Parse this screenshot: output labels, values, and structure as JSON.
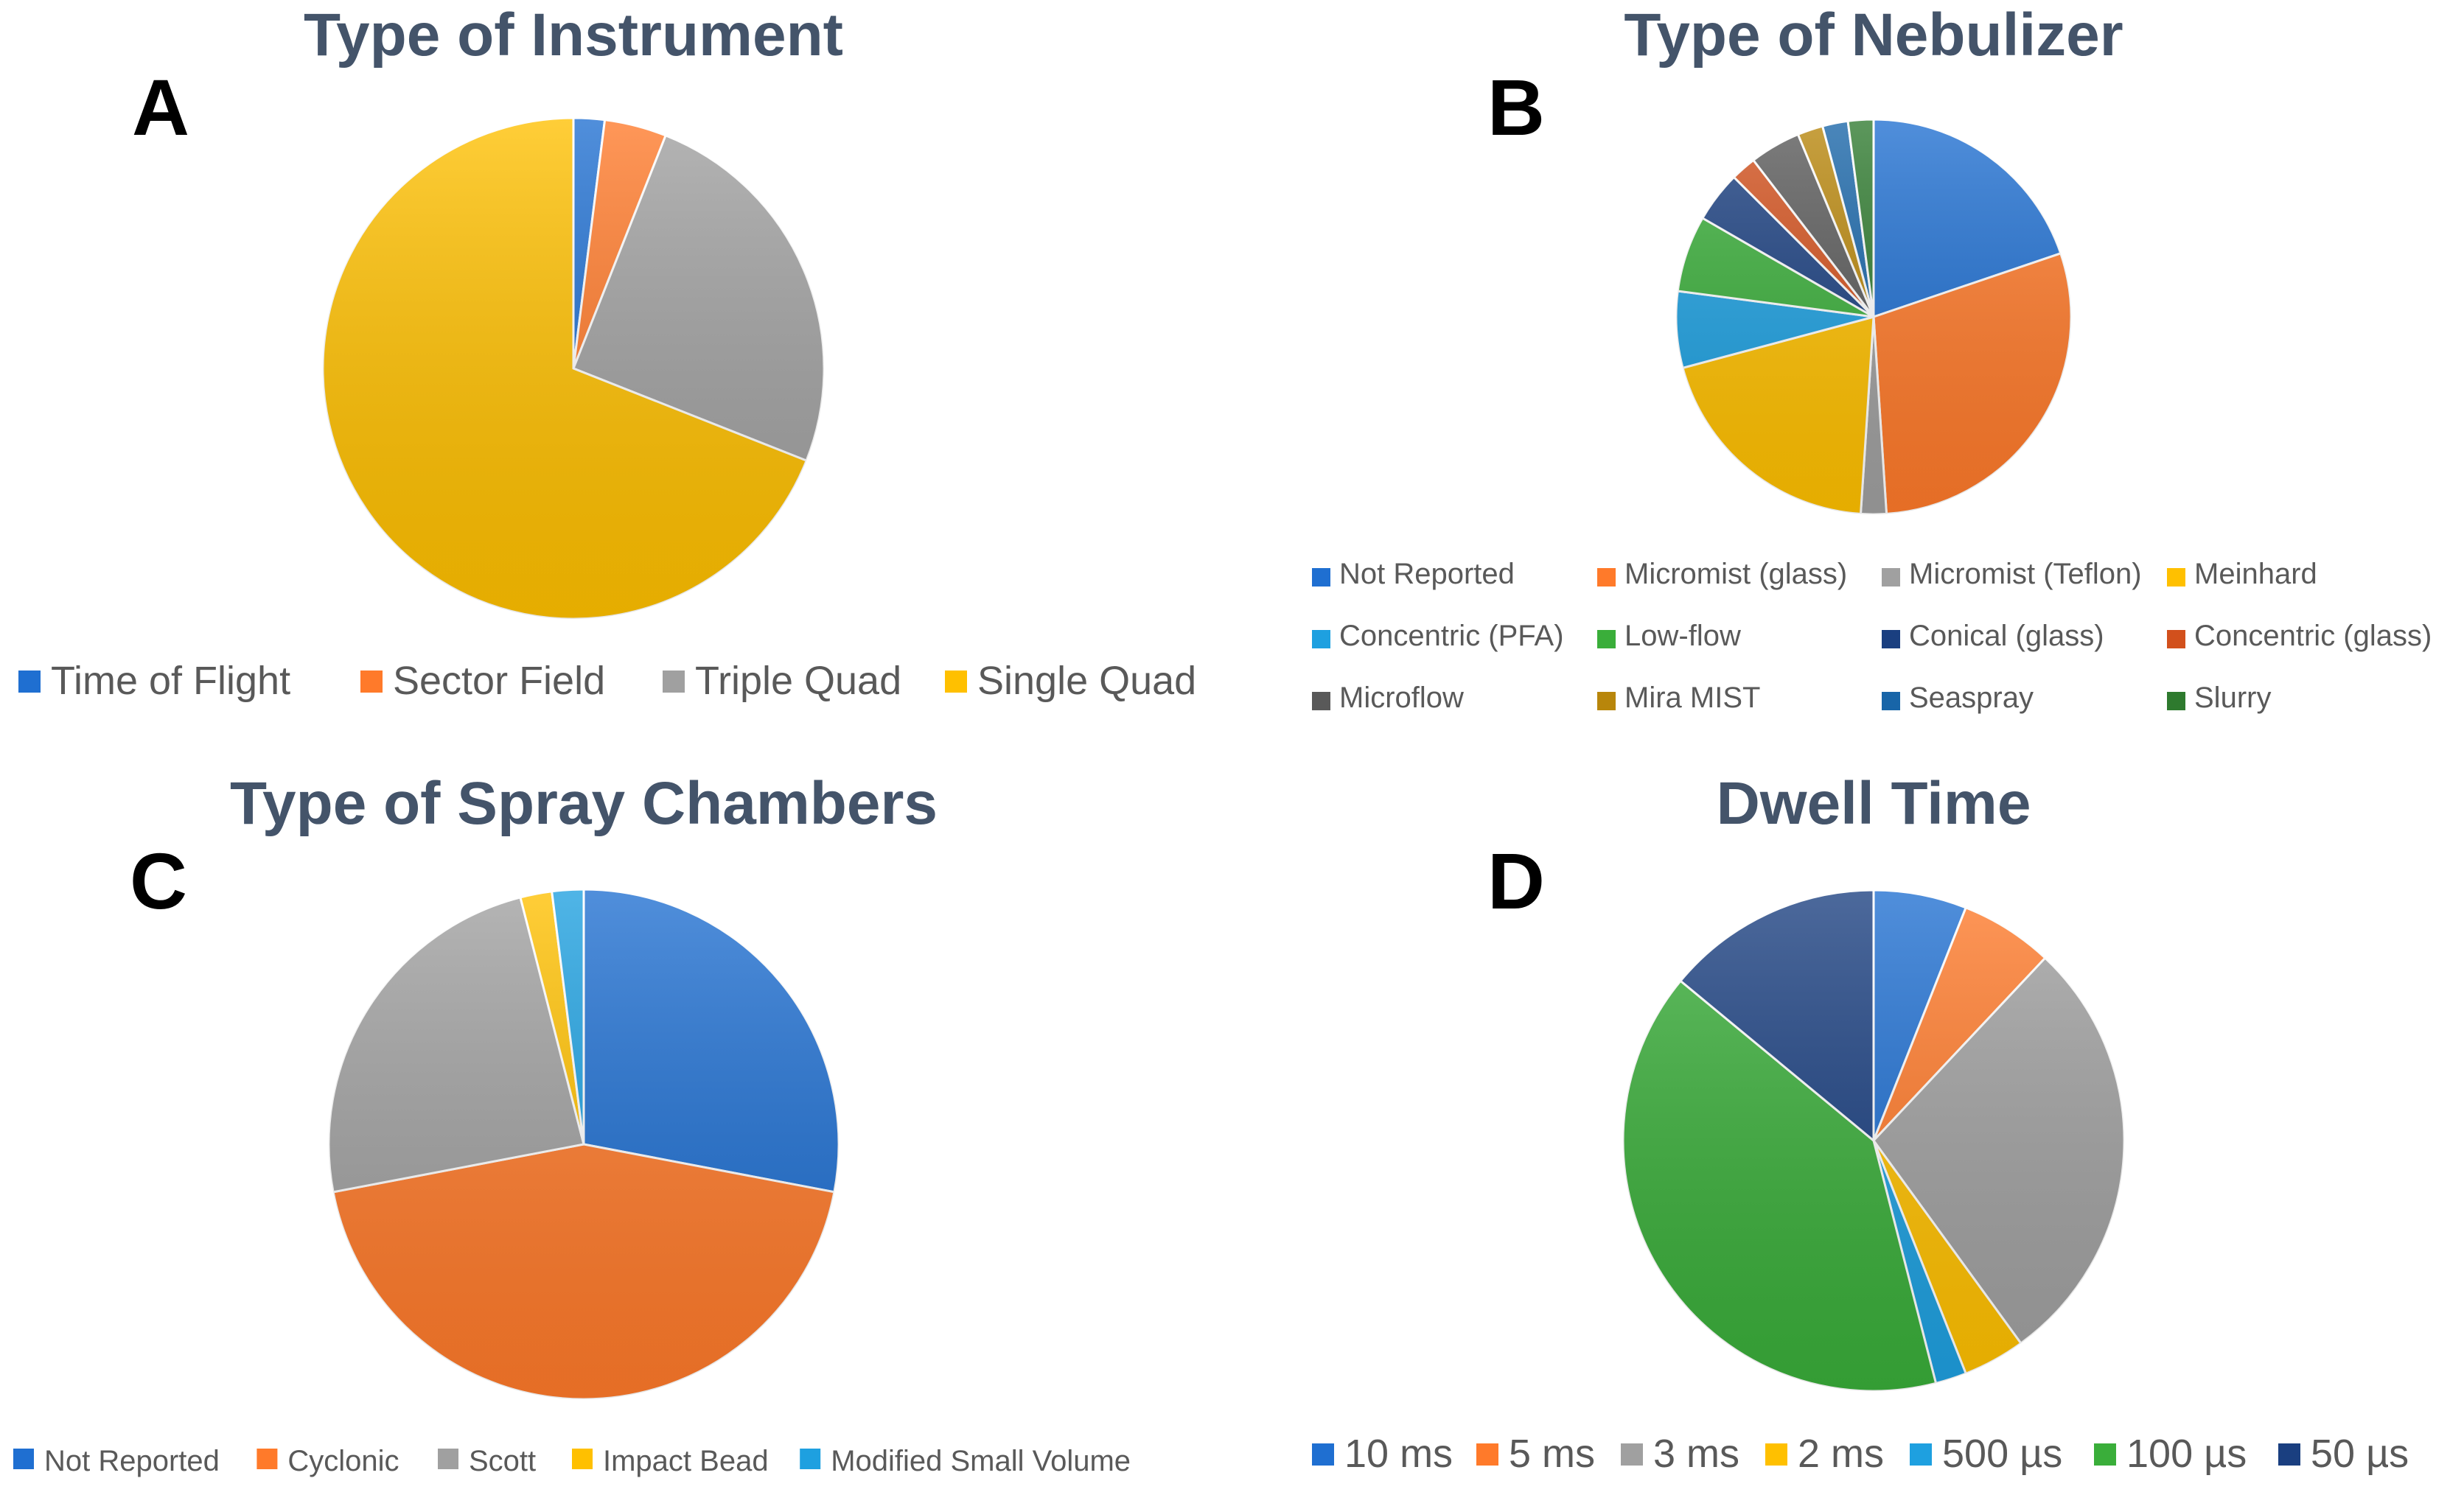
{
  "chart_data": [
    {
      "panel": "A",
      "type": "pie",
      "title": "Type of Instrument",
      "categories": [
        "Time of Flight",
        "Sector Field",
        "Triple Quad",
        "Single Quad"
      ],
      "values": [
        2,
        4,
        25,
        69
      ],
      "colors": [
        "#1f6fd1",
        "#ff7a2a",
        "#a0a0a0",
        "#ffc000"
      ],
      "legend": "bottom"
    },
    {
      "panel": "B",
      "type": "pie",
      "title": "Type of Nebulizer",
      "categories": [
        "Not Reported",
        "Micromist (glass)",
        "Micromist (Teflon)",
        "Meinhard",
        "Concentric (PFA)",
        "Low-flow",
        "Conical (glass)",
        "Concentric (glass)",
        "Microflow",
        "Mira MIST",
        "Seaspray",
        "Slurry"
      ],
      "values": [
        19,
        28,
        2,
        19,
        6,
        6,
        4,
        2,
        4,
        2,
        2,
        2
      ],
      "colors": [
        "#1f6fd1",
        "#ff7a2a",
        "#a0a0a0",
        "#ffc000",
        "#1ea0e0",
        "#3aae3a",
        "#1a3f80",
        "#d2501c",
        "#595959",
        "#b8860b",
        "#1865a8",
        "#2e7a2e"
      ],
      "legend": "bottom"
    },
    {
      "panel": "C",
      "type": "pie",
      "title": "Type of Spray Chambers",
      "categories": [
        "Not Reported",
        "Cyclonic",
        "Scott",
        "Impact Bead",
        "Modified Small Volume"
      ],
      "values": [
        28,
        44,
        24,
        2,
        2
      ],
      "colors": [
        "#1f6fd1",
        "#ff7a2a",
        "#a0a0a0",
        "#ffc000",
        "#1ea0e0"
      ],
      "legend": "bottom"
    },
    {
      "panel": "D",
      "type": "pie",
      "title": "Dwell Time",
      "categories": [
        "10 ms",
        "5 ms",
        "3 ms",
        "2 ms",
        "500 µs",
        "100 µs",
        "50 µs"
      ],
      "values": [
        6,
        6,
        28,
        4,
        2,
        40,
        14
      ],
      "colors": [
        "#1f6fd1",
        "#ff7a2a",
        "#a0a0a0",
        "#ffc000",
        "#1ea0e0",
        "#3aae3a",
        "#1a3f80"
      ],
      "legend": "bottom"
    }
  ]
}
